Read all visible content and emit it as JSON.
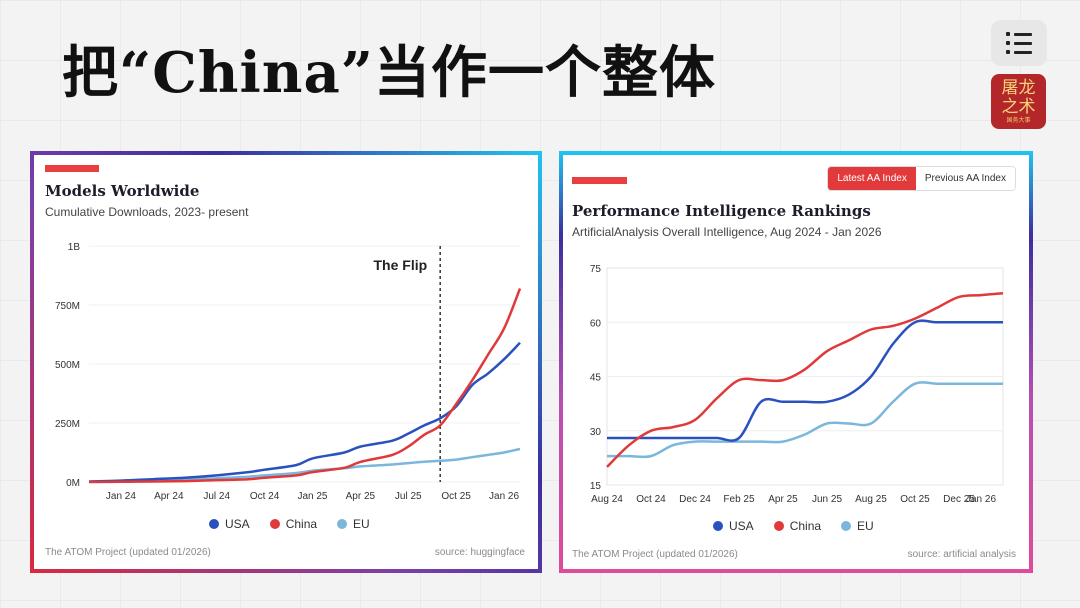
{
  "slide": {
    "title": "把“China”当作一个整体",
    "logo_text_1": "屠龙",
    "logo_text_2": "之术",
    "logo_small": "国务大事"
  },
  "colors": {
    "usa": "#2a52be",
    "china": "#e0393a",
    "eu": "#7bb6dc",
    "accent": "#e8403e"
  },
  "toggle": {
    "active_label": "Latest AA Index",
    "inactive_label": "Previous AA Index"
  },
  "legend": {
    "usa": "USA",
    "china": "China",
    "eu": "EU"
  },
  "chart_data": [
    {
      "type": "line",
      "title": "Models Worldwide",
      "subtitle": "Cumulative Downloads, 2023- present",
      "annotation": "The Flip",
      "annotation_x": "Sep 25",
      "x_tick_labels": [
        "Jan 24",
        "Apr 24",
        "Jul 24",
        "Oct 24",
        "Jan 25",
        "Apr 25",
        "Jul 25",
        "Oct 25",
        "Jan 26"
      ],
      "y_tick_labels": [
        "0M",
        "250M",
        "500M",
        "750M",
        "1B"
      ],
      "ylim": [
        0,
        1000
      ],
      "y_unit": "M",
      "x_dates": [
        "Nov 23",
        "Jan 24",
        "Mar 24",
        "May 24",
        "Jul 24",
        "Sep 24",
        "Oct 24",
        "Dec 24",
        "Jan 25",
        "Mar 25",
        "Apr 25",
        "Jun 25",
        "Jul 25",
        "Aug 25",
        "Sep 25",
        "Oct 25",
        "Nov 25",
        "Dec 25",
        "Jan 26",
        "Feb 26"
      ],
      "series": [
        {
          "name": "USA",
          "color": "#2a52be",
          "values": [
            2,
            6,
            12,
            18,
            28,
            42,
            52,
            72,
            100,
            125,
            150,
            175,
            205,
            240,
            270,
            320,
            410,
            460,
            520,
            590
          ]
        },
        {
          "name": "China",
          "color": "#e0393a",
          "values": [
            0,
            1,
            2,
            4,
            8,
            12,
            18,
            28,
            42,
            60,
            85,
            115,
            150,
            200,
            240,
            330,
            430,
            540,
            650,
            820
          ]
        },
        {
          "name": "EU",
          "color": "#7bb6dc",
          "values": [
            1,
            3,
            6,
            10,
            16,
            22,
            28,
            38,
            48,
            58,
            66,
            74,
            80,
            86,
            90,
            95,
            105,
            115,
            125,
            140
          ]
        }
      ],
      "footer_left": "The ATOM Project (updated 01/2026)",
      "footer_right": "source: huggingface"
    },
    {
      "type": "line",
      "title": "Performance Intelligence Rankings",
      "subtitle": "ArtificialAnalysis Overall Intelligence, Aug 2024 - Jan 2026",
      "x_tick_labels": [
        "Aug 24",
        "Oct 24",
        "Dec 24",
        "Feb 25",
        "Apr 25",
        "Jun 25",
        "Aug 25",
        "Oct 25",
        "Dec 25",
        "Jan 26"
      ],
      "y_tick_labels": [
        "15",
        "30",
        "45",
        "60",
        "75"
      ],
      "ylim": [
        15,
        75
      ],
      "x_dates": [
        "Aug 24",
        "Sep 24",
        "Oct 24",
        "Nov 24",
        "Dec 24",
        "Jan 25",
        "Feb 25",
        "Mar 25",
        "Apr 25",
        "May 25",
        "Jun 25",
        "Jul 25",
        "Aug 25",
        "Sep 25",
        "Oct 25",
        "Nov 25",
        "Dec 25",
        "Jan 26",
        "Feb 26"
      ],
      "series": [
        {
          "name": "USA",
          "color": "#2a52be",
          "values": [
            28,
            28,
            28,
            28,
            28,
            28,
            28,
            38,
            38,
            38,
            38,
            40,
            45,
            54,
            60,
            60,
            60,
            60,
            60
          ]
        },
        {
          "name": "China",
          "color": "#e0393a",
          "values": [
            20,
            26,
            30,
            31,
            33,
            39,
            44,
            44,
            44,
            47,
            52,
            55,
            58,
            59,
            61,
            64,
            67,
            67.5,
            68
          ]
        },
        {
          "name": "EU",
          "color": "#7bb6dc",
          "values": [
            23,
            23,
            23,
            26,
            27,
            27,
            27,
            27,
            27,
            29,
            32,
            32,
            32,
            38,
            43,
            43,
            43,
            43,
            43
          ]
        }
      ],
      "footer_left": "The ATOM Project (updated 01/2026)",
      "footer_right": "source: artificial analysis"
    }
  ]
}
